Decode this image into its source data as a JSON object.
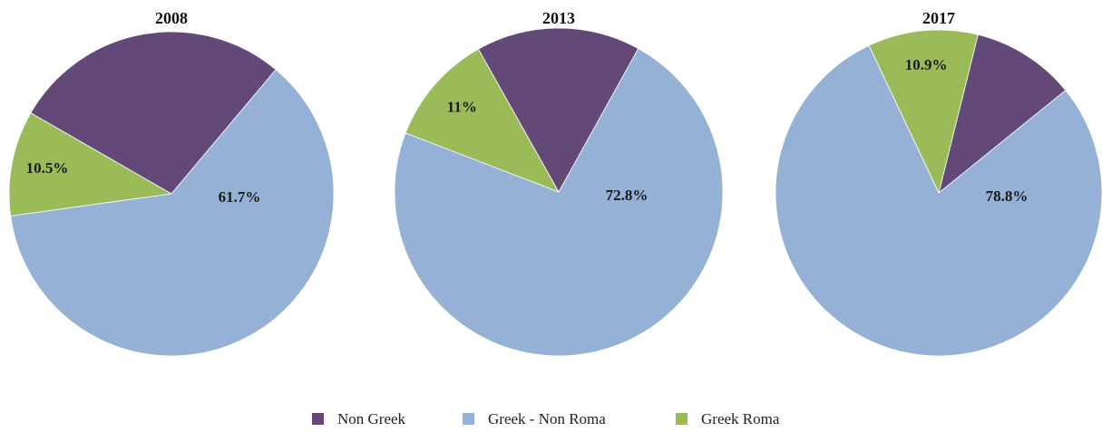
{
  "chart_data": [
    {
      "type": "pie",
      "title": "2008",
      "series": [
        {
          "name": "Non Greek",
          "value": 27.8,
          "label": ""
        },
        {
          "name": "Greek - Non Roma",
          "value": 61.7,
          "label": "61.7%"
        },
        {
          "name": "Greek Roma",
          "value": 10.5,
          "label": "10.5%"
        }
      ]
    },
    {
      "type": "pie",
      "title": "2013",
      "series": [
        {
          "name": "Non Greek",
          "value": 16.2,
          "label": ""
        },
        {
          "name": "Greek - Non Roma",
          "value": 72.8,
          "label": "72.8%"
        },
        {
          "name": "Greek Roma",
          "value": 11.0,
          "label": "11%"
        }
      ]
    },
    {
      "type": "pie",
      "title": "2017",
      "series": [
        {
          "name": "Non Greek",
          "value": 10.3,
          "label": ""
        },
        {
          "name": "Greek - Non Roma",
          "value": 78.8,
          "label": "78.8%"
        },
        {
          "name": "Greek Roma",
          "value": 10.9,
          "label": "10.9%"
        }
      ]
    }
  ],
  "legend": {
    "placement": "bottom-center",
    "items": [
      {
        "name": "Non Greek",
        "color": "#634977"
      },
      {
        "name": "Greek - Non Roma",
        "color": "#95B1D5"
      },
      {
        "name": "Greek Roma",
        "color": "#9BBB59"
      }
    ]
  }
}
